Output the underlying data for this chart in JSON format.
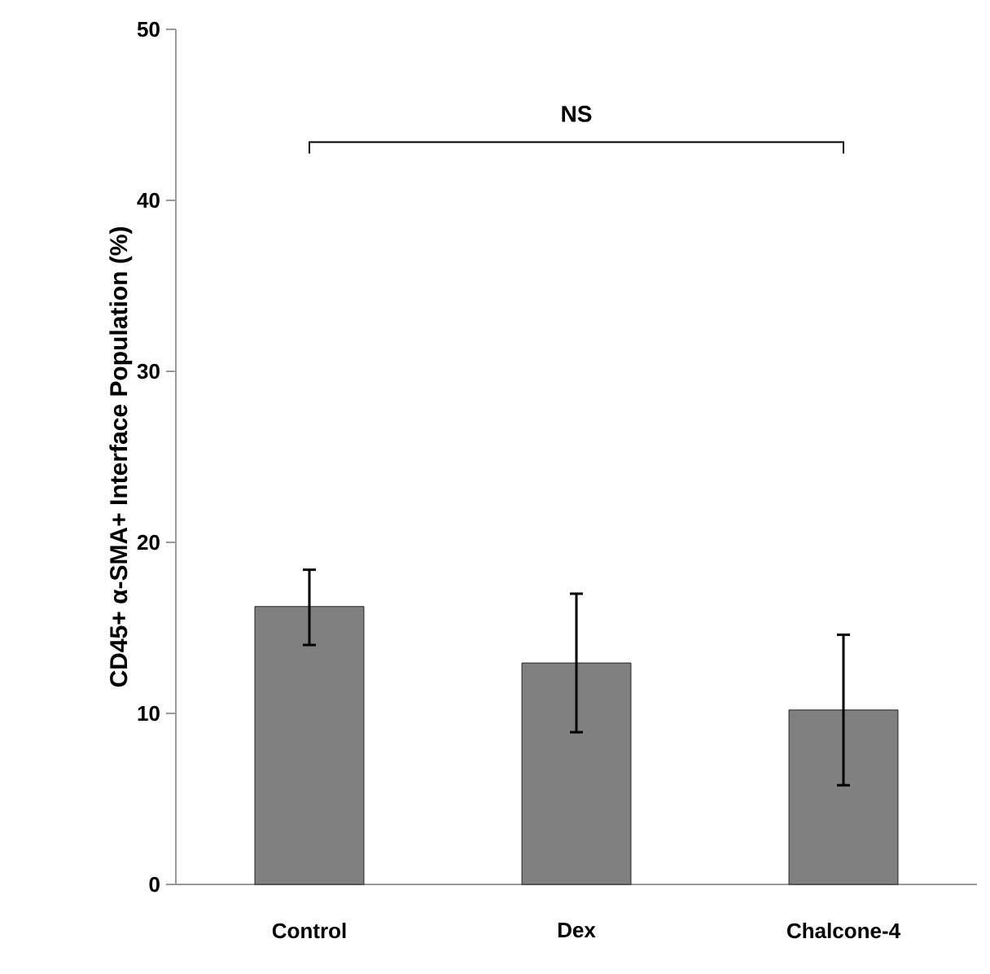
{
  "chart_data": {
    "type": "bar",
    "ylabel": "CD45+ α-SMA+ Interface Population (%)",
    "categories": [
      "Control",
      "Dex",
      "Chalcone-4"
    ],
    "values": [
      16.25,
      12.95,
      10.2
    ],
    "errors": [
      [
        14.0,
        18.4
      ],
      [
        8.9,
        17.0
      ],
      [
        5.8,
        14.6
      ]
    ],
    "color": "#808080",
    "ylim": [
      0,
      50
    ],
    "yticks": [
      0,
      10,
      20,
      30,
      40,
      50
    ],
    "grid": false,
    "annotations": [
      "NS"
    ]
  }
}
